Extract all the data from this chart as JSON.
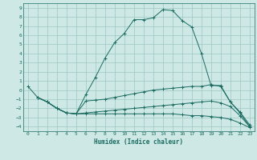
{
  "xlabel": "Humidex (Indice chaleur)",
  "bg_color": "#cde8e5",
  "grid_color": "#9dc8c3",
  "line_color": "#1a6b60",
  "xlim": [
    -0.5,
    23.5
  ],
  "ylim": [
    -4.5,
    9.5
  ],
  "xticks": [
    0,
    1,
    2,
    3,
    4,
    5,
    6,
    7,
    8,
    9,
    10,
    11,
    12,
    13,
    14,
    15,
    16,
    17,
    18,
    19,
    20,
    21,
    22,
    23
  ],
  "yticks": [
    -4,
    -3,
    -2,
    -1,
    0,
    1,
    2,
    3,
    4,
    5,
    6,
    7,
    8,
    9
  ],
  "series": [
    {
      "x": [
        0,
        1,
        2,
        3,
        4,
        5,
        6,
        7,
        8,
        9,
        10,
        11,
        12,
        13,
        14,
        15,
        16,
        17,
        18,
        19,
        20,
        21,
        22,
        23
      ],
      "y": [
        0.4,
        -0.8,
        -1.3,
        -2.0,
        -2.5,
        -2.6,
        -0.5,
        1.4,
        3.5,
        5.2,
        6.2,
        7.7,
        7.7,
        7.9,
        8.8,
        8.7,
        7.6,
        6.9,
        4.0,
        0.5,
        0.5,
        -1.3,
        -2.4,
        -3.8
      ]
    },
    {
      "x": [
        1,
        2,
        3,
        4,
        5,
        6,
        7,
        8,
        9,
        10,
        11,
        12,
        13,
        14,
        15,
        16,
        17,
        18,
        19,
        20,
        21,
        22,
        23
      ],
      "y": [
        -0.8,
        -1.3,
        -2.0,
        -2.5,
        -2.6,
        -1.2,
        -1.1,
        -1.0,
        -0.8,
        -0.6,
        -0.4,
        -0.2,
        0.0,
        0.1,
        0.2,
        0.3,
        0.4,
        0.4,
        0.6,
        0.4,
        -1.3,
        -2.5,
        -4.0
      ]
    },
    {
      "x": [
        1,
        2,
        3,
        4,
        5,
        6,
        7,
        8,
        9,
        10,
        11,
        12,
        13,
        14,
        15,
        16,
        17,
        18,
        19,
        20,
        21,
        22,
        23
      ],
      "y": [
        -0.8,
        -1.3,
        -2.0,
        -2.5,
        -2.6,
        -2.5,
        -2.4,
        -2.3,
        -2.2,
        -2.1,
        -2.0,
        -1.9,
        -1.8,
        -1.7,
        -1.6,
        -1.5,
        -1.4,
        -1.3,
        -1.2,
        -1.4,
        -1.8,
        -2.8,
        -4.0
      ]
    },
    {
      "x": [
        1,
        2,
        3,
        4,
        5,
        6,
        7,
        8,
        9,
        10,
        11,
        12,
        13,
        14,
        15,
        16,
        17,
        18,
        19,
        20,
        21,
        22,
        23
      ],
      "y": [
        -0.8,
        -1.3,
        -2.0,
        -2.5,
        -2.6,
        -2.6,
        -2.6,
        -2.6,
        -2.6,
        -2.6,
        -2.6,
        -2.6,
        -2.6,
        -2.6,
        -2.6,
        -2.7,
        -2.8,
        -2.8,
        -2.9,
        -3.0,
        -3.2,
        -3.6,
        -4.1
      ]
    }
  ]
}
